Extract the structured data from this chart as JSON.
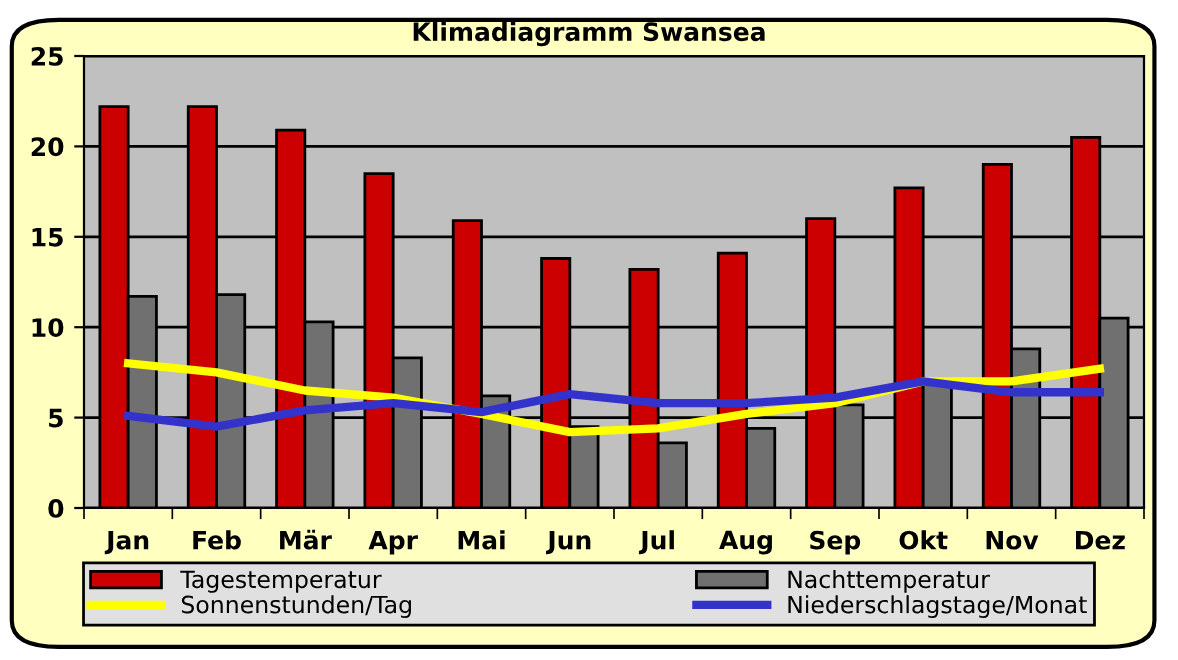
{
  "chart_data": {
    "type": "bar",
    "title": "Klimadiagramm Swansea",
    "categories": [
      "Jan",
      "Feb",
      "Mär",
      "Apr",
      "Mai",
      "Jun",
      "Jul",
      "Aug",
      "Sep",
      "Okt",
      "Nov",
      "Dez"
    ],
    "series": [
      {
        "name": "Tagestemperatur",
        "color": "#cc0000",
        "values": [
          22.2,
          22.2,
          20.9,
          18.5,
          15.9,
          13.8,
          13.2,
          14.1,
          16.0,
          17.7,
          19.0,
          20.5
        ]
      },
      {
        "name": "Nachttemperatur",
        "color": "#707070",
        "values": [
          11.7,
          11.8,
          10.3,
          8.3,
          6.2,
          4.5,
          3.6,
          4.4,
          5.7,
          7.0,
          8.8,
          10.5
        ]
      },
      {
        "name": "Sonnenstunden/Tag",
        "type": "line",
        "color": "#ffff00",
        "values": [
          8.0,
          7.5,
          6.5,
          6.1,
          5.2,
          4.2,
          4.4,
          5.2,
          5.8,
          7.0,
          7.0,
          7.7
        ]
      },
      {
        "name": "Niederschlagstage/Monat",
        "type": "line",
        "color": "#3333cc",
        "values": [
          5.1,
          4.5,
          5.4,
          5.8,
          5.3,
          6.3,
          5.8,
          5.8,
          6.1,
          7.0,
          6.4,
          6.4
        ]
      }
    ],
    "ylim": [
      0,
      25
    ],
    "yticks": [
      0,
      5,
      10,
      15,
      20,
      25
    ],
    "grid": "y",
    "legend": "bottom",
    "marker": "none",
    "line_style": "solid"
  }
}
